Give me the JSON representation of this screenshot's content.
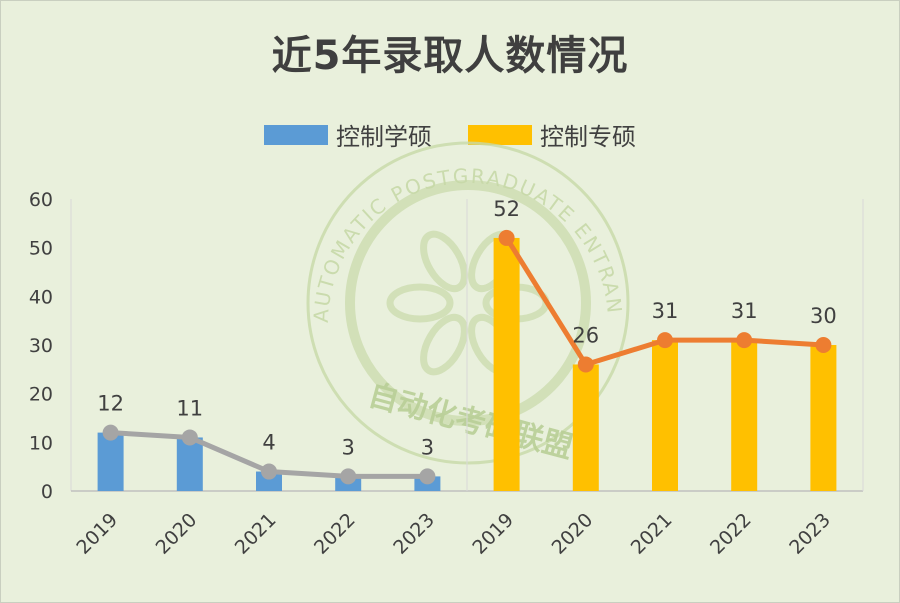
{
  "chart_data": {
    "type": "bar",
    "title": "近5年录取人数情况",
    "watermark": "自动化考研联盟",
    "watermark_ring_text": "AUTOMATIC POSTGRADUATE ENTRANCE EXAMINATION ALLIANCE",
    "ylim": [
      0,
      60
    ],
    "yticks": [
      "0",
      "10",
      "20",
      "30",
      "40",
      "50",
      "60"
    ],
    "legend_position": "top",
    "grid": false,
    "groups": [
      {
        "name": "控制学硕",
        "categories": [
          "2019",
          "2020",
          "2021",
          "2022",
          "2023"
        ],
        "values": [
          12,
          11,
          4,
          3,
          3
        ],
        "labels": [
          "12",
          "11",
          "4",
          "3",
          "3"
        ],
        "bar_color": "#5b9bd5",
        "line_color": "#a5a5a5"
      },
      {
        "name": "控制专硕",
        "categories": [
          "2019",
          "2020",
          "2021",
          "2022",
          "2023"
        ],
        "values": [
          52,
          26,
          31,
          31,
          30
        ],
        "labels": [
          "52",
          "26",
          "31",
          "31",
          "30"
        ],
        "bar_color": "#ffc000",
        "line_color": "#ed7d31"
      }
    ]
  }
}
